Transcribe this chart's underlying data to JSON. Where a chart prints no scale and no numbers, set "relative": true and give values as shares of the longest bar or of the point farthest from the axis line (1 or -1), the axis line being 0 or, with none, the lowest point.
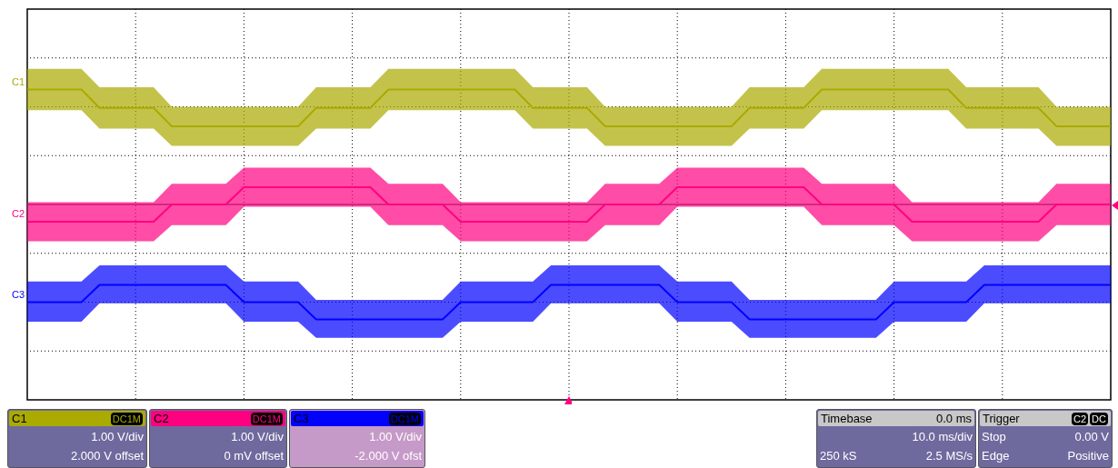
{
  "chart_data": {
    "type": "line",
    "relative": true,
    "grid": true,
    "categories": [
      null,
      null,
      null,
      null,
      null,
      null,
      null,
      null,
      null,
      null,
      null,
      null,
      null,
      null,
      null,
      null,
      null,
      null,
      null,
      null,
      null,
      null,
      null,
      null,
      null,
      null,
      null,
      null,
      null,
      null,
      null,
      null,
      null,
      null,
      null,
      null,
      null,
      null,
      null,
      null,
      null,
      null,
      null,
      null,
      null,
      null,
      null,
      null,
      null,
      null,
      null,
      null,
      null,
      null,
      null,
      null,
      null,
      null,
      null,
      null,
      null
    ],
    "series": [
      {
        "name": "C1",
        "color": "#aaaa00",
        "values": [
          1.0,
          1.0,
          1.0,
          1.0,
          0.84,
          0.84,
          0.84,
          0.84,
          0.68,
          0.68,
          0.68,
          0.68,
          0.68,
          0.68,
          0.68,
          0.68,
          0.84,
          0.84,
          0.84,
          0.84,
          1.0,
          1.0,
          1.0,
          1.0,
          1.0,
          1.0,
          1.0,
          1.0,
          0.84,
          0.84,
          0.84,
          0.84,
          0.68,
          0.68,
          0.68,
          0.68,
          0.68,
          0.68,
          0.68,
          0.68,
          0.84,
          0.84,
          0.84,
          0.84,
          1.0,
          1.0,
          1.0,
          1.0,
          1.0,
          1.0,
          1.0,
          1.0,
          0.84,
          0.84,
          0.84,
          0.84,
          0.84,
          0.68,
          0.68,
          0.68,
          0.68
        ],
        "lower": [
          0.82,
          0.82,
          0.82,
          0.82,
          0.66,
          0.66,
          0.66,
          0.66,
          0.51,
          0.51,
          0.51,
          0.51,
          0.51,
          0.51,
          0.51,
          0.51,
          0.66,
          0.66,
          0.66,
          0.66,
          0.82,
          0.82,
          0.82,
          0.82,
          0.82,
          0.82,
          0.82,
          0.82,
          0.66,
          0.66,
          0.66,
          0.66,
          0.51,
          0.51,
          0.51,
          0.51,
          0.51,
          0.51,
          0.51,
          0.51,
          0.66,
          0.66,
          0.66,
          0.66,
          0.82,
          0.82,
          0.82,
          0.82,
          0.82,
          0.82,
          0.82,
          0.82,
          0.66,
          0.66,
          0.66,
          0.66,
          0.66,
          0.51,
          0.51,
          0.51,
          0.51
        ],
        "upper": [
          1.18,
          1.18,
          1.18,
          1.18,
          1.02,
          1.02,
          1.02,
          1.02,
          0.85,
          0.85,
          0.85,
          0.85,
          0.85,
          0.85,
          0.85,
          0.85,
          1.02,
          1.02,
          1.02,
          1.02,
          1.18,
          1.18,
          1.18,
          1.18,
          1.18,
          1.18,
          1.18,
          1.18,
          1.02,
          1.02,
          1.02,
          1.02,
          0.85,
          0.85,
          0.85,
          0.85,
          0.85,
          0.85,
          0.85,
          0.85,
          1.02,
          1.02,
          1.02,
          1.02,
          1.18,
          1.18,
          1.18,
          1.18,
          1.18,
          1.18,
          1.18,
          1.18,
          1.02,
          1.02,
          1.02,
          1.02,
          1.02,
          0.85,
          0.85,
          0.85,
          0.85
        ]
      },
      {
        "name": "C2",
        "color": "#ff0080",
        "values": [
          -0.15,
          -0.15,
          -0.15,
          -0.15,
          -0.15,
          -0.15,
          -0.15,
          -0.15,
          0,
          0,
          0,
          0,
          0.15,
          0.15,
          0.15,
          0.15,
          0.15,
          0.15,
          0.15,
          0.15,
          0,
          0,
          0,
          0,
          -0.15,
          -0.15,
          -0.15,
          -0.15,
          -0.15,
          -0.15,
          -0.15,
          -0.15,
          0,
          0,
          0,
          0,
          0.15,
          0.15,
          0.15,
          0.15,
          0.15,
          0.15,
          0.15,
          0.15,
          0,
          0,
          0,
          0,
          0,
          -0.15,
          -0.15,
          -0.15,
          -0.15,
          -0.15,
          -0.15,
          -0.15,
          -0.15,
          0,
          0,
          0,
          0
        ],
        "lower": [
          -0.32,
          -0.32,
          -0.32,
          -0.32,
          -0.32,
          -0.32,
          -0.32,
          -0.32,
          -0.18,
          -0.18,
          -0.18,
          -0.18,
          -0.02,
          -0.02,
          -0.02,
          -0.02,
          -0.02,
          -0.02,
          -0.02,
          -0.02,
          -0.18,
          -0.18,
          -0.18,
          -0.18,
          -0.32,
          -0.32,
          -0.32,
          -0.32,
          -0.32,
          -0.32,
          -0.32,
          -0.32,
          -0.18,
          -0.18,
          -0.18,
          -0.18,
          -0.02,
          -0.02,
          -0.02,
          -0.02,
          -0.02,
          -0.02,
          -0.02,
          -0.02,
          -0.18,
          -0.18,
          -0.18,
          -0.18,
          -0.18,
          -0.32,
          -0.32,
          -0.32,
          -0.32,
          -0.32,
          -0.32,
          -0.32,
          -0.32,
          -0.18,
          -0.18,
          -0.18,
          -0.18
        ],
        "upper": [
          0.02,
          0.02,
          0.02,
          0.02,
          0.02,
          0.02,
          0.02,
          0.02,
          0.18,
          0.18,
          0.18,
          0.18,
          0.32,
          0.32,
          0.32,
          0.32,
          0.32,
          0.32,
          0.32,
          0.32,
          0.18,
          0.18,
          0.18,
          0.18,
          0.02,
          0.02,
          0.02,
          0.02,
          0.02,
          0.02,
          0.02,
          0.02,
          0.18,
          0.18,
          0.18,
          0.18,
          0.32,
          0.32,
          0.32,
          0.32,
          0.32,
          0.32,
          0.32,
          0.32,
          0.18,
          0.18,
          0.18,
          0.18,
          0.18,
          0.02,
          0.02,
          0.02,
          0.02,
          0.02,
          0.02,
          0.02,
          0.02,
          0.18,
          0.18,
          0.18,
          0.18
        ]
      },
      {
        "name": "C3",
        "color": "#0000ff",
        "values": [
          -0.85,
          -0.85,
          -0.85,
          -0.85,
          -0.7,
          -0.7,
          -0.7,
          -0.7,
          -0.7,
          -0.7,
          -0.7,
          -0.7,
          -0.85,
          -0.85,
          -0.85,
          -0.85,
          -1.0,
          -1.0,
          -1.0,
          -1.0,
          -1.0,
          -1.0,
          -1.0,
          -1.0,
          -0.85,
          -0.85,
          -0.85,
          -0.85,
          -0.85,
          -0.7,
          -0.7,
          -0.7,
          -0.7,
          -0.7,
          -0.7,
          -0.7,
          -0.85,
          -0.85,
          -0.85,
          -0.85,
          -1.0,
          -1.0,
          -1.0,
          -1.0,
          -1.0,
          -1.0,
          -1.0,
          -1.0,
          -0.85,
          -0.85,
          -0.85,
          -0.85,
          -0.85,
          -0.7,
          -0.7,
          -0.7,
          -0.7,
          -0.7,
          -0.7,
          -0.7,
          -0.7
        ],
        "lower": [
          -1.02,
          -1.02,
          -1.02,
          -1.02,
          -0.86,
          -0.86,
          -0.86,
          -0.86,
          -0.86,
          -0.86,
          -0.86,
          -0.86,
          -1.02,
          -1.02,
          -1.02,
          -1.02,
          -1.16,
          -1.16,
          -1.16,
          -1.16,
          -1.16,
          -1.16,
          -1.16,
          -1.16,
          -1.02,
          -1.02,
          -1.02,
          -1.02,
          -1.02,
          -0.86,
          -0.86,
          -0.86,
          -0.86,
          -0.86,
          -0.86,
          -0.86,
          -1.02,
          -1.02,
          -1.02,
          -1.02,
          -1.16,
          -1.16,
          -1.16,
          -1.16,
          -1.16,
          -1.16,
          -1.16,
          -1.16,
          -1.02,
          -1.02,
          -1.02,
          -1.02,
          -1.02,
          -0.86,
          -0.86,
          -0.86,
          -0.86,
          -0.86,
          -0.86,
          -0.86,
          -0.86
        ],
        "upper": [
          -0.67,
          -0.67,
          -0.67,
          -0.67,
          -0.53,
          -0.53,
          -0.53,
          -0.53,
          -0.53,
          -0.53,
          -0.53,
          -0.53,
          -0.67,
          -0.67,
          -0.67,
          -0.67,
          -0.83,
          -0.83,
          -0.83,
          -0.83,
          -0.83,
          -0.83,
          -0.83,
          -0.83,
          -0.67,
          -0.67,
          -0.67,
          -0.67,
          -0.67,
          -0.53,
          -0.53,
          -0.53,
          -0.53,
          -0.53,
          -0.53,
          -0.53,
          -0.67,
          -0.67,
          -0.67,
          -0.67,
          -0.83,
          -0.83,
          -0.83,
          -0.83,
          -0.83,
          -0.83,
          -0.83,
          -0.83,
          -0.67,
          -0.67,
          -0.67,
          -0.67,
          -0.67,
          -0.53,
          -0.53,
          -0.53,
          -0.53,
          -0.53,
          -0.53,
          -0.53,
          -0.53
        ]
      }
    ],
    "annotations": [
      "DC1M",
      "1.00 V/div",
      "2.000 V offset",
      "DC1M",
      "1.00 V/div",
      "0 mV offset",
      "DC1M",
      "1.00 V/div",
      "-2.000 V ofst",
      "Timebase",
      "0.0 ms",
      "10.0 ms/div",
      "250 kS",
      "2.5 MS/s",
      "Trigger",
      "C2",
      "DC",
      "Stop",
      "0.00 V",
      "Edge",
      "Positive"
    ]
  }
}
